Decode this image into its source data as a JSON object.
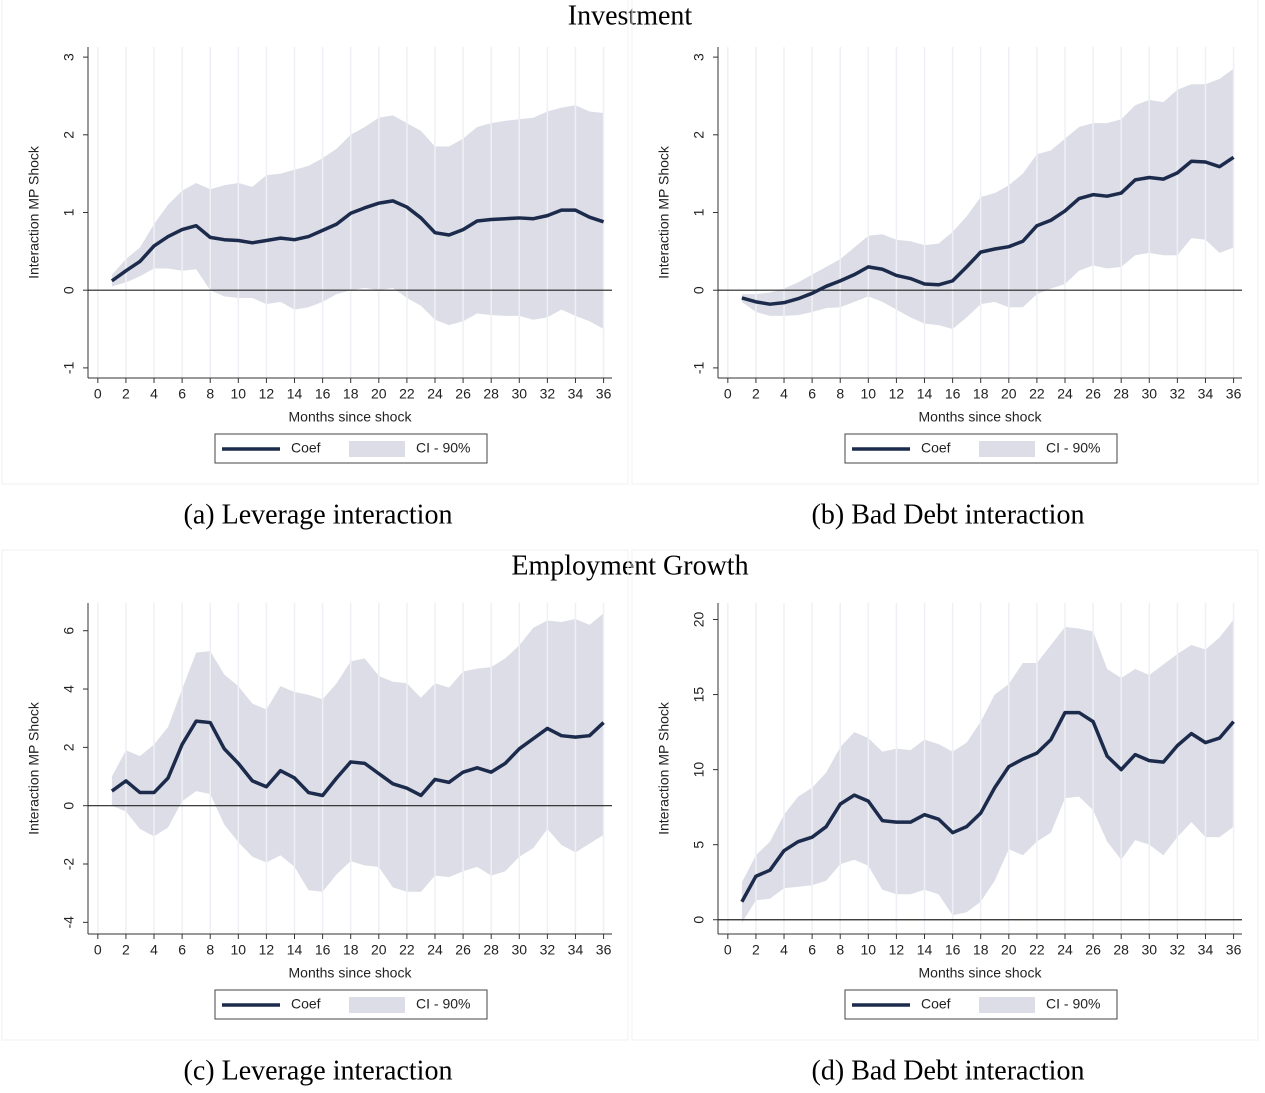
{
  "section_titles": [
    "Investment",
    "Employment Growth"
  ],
  "chart_data": [
    {
      "type": "line",
      "caption": "(a) Leverage interaction",
      "x_label": "Months since shock",
      "y_label": "Interaction MP Shock",
      "x": [
        1,
        2,
        3,
        4,
        5,
        6,
        7,
        8,
        9,
        10,
        11,
        12,
        13,
        14,
        15,
        16,
        17,
        18,
        19,
        20,
        21,
        22,
        23,
        24,
        25,
        26,
        27,
        28,
        29,
        30,
        31,
        32,
        33,
        34,
        35,
        36
      ],
      "series": [
        {
          "name": "Coef",
          "color": "#1c2b4b",
          "values": [
            0.12,
            0.25,
            0.37,
            0.57,
            0.69,
            0.78,
            0.83,
            0.68,
            0.65,
            0.64,
            0.61,
            0.64,
            0.67,
            0.65,
            0.69,
            0.77,
            0.85,
            0.99,
            1.06,
            1.12,
            1.15,
            1.07,
            0.93,
            0.74,
            0.71,
            0.78,
            0.89,
            0.91,
            0.92,
            0.93,
            0.92,
            0.96,
            1.03,
            1.03,
            0.94,
            0.88
          ]
        },
        {
          "name": "CI - 90%",
          "color": "#dcdde6",
          "upper": [
            0.2,
            0.4,
            0.55,
            0.85,
            1.1,
            1.28,
            1.38,
            1.3,
            1.35,
            1.38,
            1.33,
            1.48,
            1.5,
            1.55,
            1.6,
            1.7,
            1.82,
            2.0,
            2.1,
            2.22,
            2.25,
            2.15,
            2.05,
            1.85,
            1.85,
            1.95,
            2.1,
            2.15,
            2.18,
            2.2,
            2.22,
            2.3,
            2.35,
            2.38,
            2.3,
            2.28
          ],
          "lower": [
            0.05,
            0.1,
            0.18,
            0.28,
            0.28,
            0.25,
            0.27,
            0.0,
            -0.08,
            -0.1,
            -0.1,
            -0.18,
            -0.15,
            -0.25,
            -0.22,
            -0.15,
            -0.05,
            0.0,
            0.03,
            0.0,
            0.03,
            -0.1,
            -0.2,
            -0.38,
            -0.45,
            -0.4,
            -0.3,
            -0.32,
            -0.33,
            -0.33,
            -0.38,
            -0.35,
            -0.25,
            -0.33,
            -0.4,
            -0.5
          ]
        }
      ],
      "xlim": [
        -0.7,
        36.6
      ],
      "xticks": [
        0,
        2,
        4,
        6,
        8,
        10,
        12,
        14,
        16,
        18,
        20,
        22,
        24,
        26,
        28,
        30,
        32,
        34,
        36
      ],
      "ylim": [
        -1.13,
        3.13
      ],
      "yticks": [
        -1,
        0,
        1,
        2,
        3
      ],
      "reference_line": 0,
      "grid": "x"
    },
    {
      "type": "line",
      "caption": "(b) Bad Debt interaction",
      "x_label": "Months since shock",
      "y_label": "Interaction MP Shock",
      "x": [
        1,
        2,
        3,
        4,
        5,
        6,
        7,
        8,
        9,
        10,
        11,
        12,
        13,
        14,
        15,
        16,
        17,
        18,
        19,
        20,
        21,
        22,
        23,
        24,
        25,
        26,
        27,
        28,
        29,
        30,
        31,
        32,
        33,
        34,
        35,
        36
      ],
      "series": [
        {
          "name": "Coef",
          "color": "#1c2b4b",
          "values": [
            -0.1,
            -0.15,
            -0.18,
            -0.16,
            -0.11,
            -0.04,
            0.05,
            0.12,
            0.2,
            0.3,
            0.27,
            0.19,
            0.15,
            0.08,
            0.07,
            0.12,
            0.3,
            0.49,
            0.53,
            0.56,
            0.63,
            0.83,
            0.9,
            1.02,
            1.18,
            1.23,
            1.21,
            1.25,
            1.42,
            1.45,
            1.43,
            1.51,
            1.66,
            1.65,
            1.59,
            1.71
          ]
        },
        {
          "name": "CI - 90%",
          "color": "#dcdde6",
          "upper": [
            -0.05,
            -0.05,
            -0.03,
            0.02,
            0.1,
            0.2,
            0.3,
            0.4,
            0.55,
            0.7,
            0.72,
            0.65,
            0.63,
            0.58,
            0.6,
            0.75,
            0.95,
            1.2,
            1.25,
            1.35,
            1.5,
            1.75,
            1.8,
            1.95,
            2.1,
            2.15,
            2.15,
            2.2,
            2.38,
            2.45,
            2.42,
            2.58,
            2.65,
            2.65,
            2.72,
            2.85
          ],
          "lower": [
            -0.15,
            -0.28,
            -0.33,
            -0.33,
            -0.32,
            -0.28,
            -0.23,
            -0.22,
            -0.15,
            -0.08,
            -0.15,
            -0.25,
            -0.35,
            -0.43,
            -0.45,
            -0.5,
            -0.35,
            -0.18,
            -0.15,
            -0.22,
            -0.22,
            -0.05,
            0.02,
            0.08,
            0.25,
            0.32,
            0.28,
            0.3,
            0.45,
            0.48,
            0.45,
            0.45,
            0.67,
            0.65,
            0.48,
            0.55
          ]
        }
      ],
      "xlim": [
        -0.7,
        36.6
      ],
      "xticks": [
        0,
        2,
        4,
        6,
        8,
        10,
        12,
        14,
        16,
        18,
        20,
        22,
        24,
        26,
        28,
        30,
        32,
        34,
        36
      ],
      "ylim": [
        -1.13,
        3.13
      ],
      "yticks": [
        -1,
        0,
        1,
        2,
        3
      ],
      "reference_line": 0,
      "grid": "x"
    },
    {
      "type": "line",
      "caption": "(c) Leverage interaction",
      "x_label": "Months since shock",
      "y_label": "Interaction MP Shock",
      "x": [
        1,
        2,
        3,
        4,
        5,
        6,
        7,
        8,
        9,
        10,
        11,
        12,
        13,
        14,
        15,
        16,
        17,
        18,
        19,
        20,
        21,
        22,
        23,
        24,
        25,
        26,
        27,
        28,
        29,
        30,
        31,
        32,
        33,
        34,
        35,
        36
      ],
      "series": [
        {
          "name": "Coef",
          "color": "#1c2b4b",
          "values": [
            0.5,
            0.85,
            0.45,
            0.45,
            0.95,
            2.1,
            2.9,
            2.85,
            1.95,
            1.45,
            0.85,
            0.65,
            1.2,
            0.95,
            0.45,
            0.35,
            0.95,
            1.5,
            1.45,
            1.1,
            0.75,
            0.6,
            0.35,
            0.9,
            0.8,
            1.15,
            1.3,
            1.15,
            1.45,
            1.95,
            2.3,
            2.65,
            2.4,
            2.35,
            2.4,
            2.85
          ]
        },
        {
          "name": "CI - 90%",
          "color": "#dcdde6",
          "upper": [
            1.0,
            1.9,
            1.7,
            2.1,
            2.7,
            4.0,
            5.25,
            5.3,
            4.5,
            4.1,
            3.5,
            3.3,
            4.1,
            3.9,
            3.8,
            3.65,
            4.2,
            4.95,
            5.05,
            4.45,
            4.25,
            4.2,
            3.7,
            4.2,
            4.05,
            4.6,
            4.7,
            4.75,
            5.05,
            5.5,
            6.1,
            6.35,
            6.3,
            6.4,
            6.2,
            6.6
          ],
          "lower": [
            0.0,
            -0.2,
            -0.8,
            -1.05,
            -0.75,
            0.15,
            0.5,
            0.4,
            -0.65,
            -1.25,
            -1.75,
            -1.95,
            -1.7,
            -2.1,
            -2.9,
            -2.95,
            -2.35,
            -1.9,
            -2.05,
            -2.1,
            -2.8,
            -2.95,
            -2.95,
            -2.4,
            -2.45,
            -2.25,
            -2.1,
            -2.4,
            -2.25,
            -1.75,
            -1.45,
            -0.8,
            -1.35,
            -1.6,
            -1.3,
            -1.0
          ]
        }
      ],
      "xlim": [
        -0.7,
        36.6
      ],
      "xticks": [
        0,
        2,
        4,
        6,
        8,
        10,
        12,
        14,
        16,
        18,
        20,
        22,
        24,
        26,
        28,
        30,
        32,
        34,
        36
      ],
      "ylim": [
        -4.4,
        6.95
      ],
      "yticks": [
        -4,
        -2,
        0,
        2,
        4,
        6
      ],
      "reference_line": 0,
      "grid": "x"
    },
    {
      "type": "line",
      "caption": "(d) Bad Debt interaction",
      "x_label": "Months since shock",
      "y_label": "Interaction MP Shock",
      "x": [
        1,
        2,
        3,
        4,
        5,
        6,
        7,
        8,
        9,
        10,
        11,
        12,
        13,
        14,
        15,
        16,
        17,
        18,
        19,
        20,
        21,
        22,
        23,
        24,
        25,
        26,
        27,
        28,
        29,
        30,
        31,
        32,
        33,
        34,
        35,
        36
      ],
      "series": [
        {
          "name": "Coef",
          "color": "#1c2b4b",
          "values": [
            1.2,
            2.9,
            3.3,
            4.6,
            5.2,
            5.5,
            6.2,
            7.7,
            8.3,
            7.9,
            6.6,
            6.5,
            6.5,
            7.0,
            6.7,
            5.8,
            6.2,
            7.1,
            8.8,
            10.2,
            10.7,
            11.1,
            12.0,
            13.8,
            13.8,
            13.2,
            10.9,
            10.0,
            11.0,
            10.6,
            10.5,
            11.6,
            12.4,
            11.8,
            12.1,
            13.2
          ]
        },
        {
          "name": "CI - 90%",
          "color": "#dcdde6",
          "upper": [
            2.5,
            4.3,
            5.2,
            7.0,
            8.2,
            8.8,
            9.8,
            11.5,
            12.5,
            12.1,
            11.2,
            11.4,
            11.3,
            12.0,
            11.7,
            11.2,
            11.8,
            13.2,
            15.0,
            15.7,
            17.1,
            17.1,
            18.3,
            19.5,
            19.4,
            19.2,
            16.7,
            16.1,
            16.7,
            16.3,
            17.0,
            17.7,
            18.3,
            18.0,
            18.8,
            20.0
          ],
          "lower": [
            -0.2,
            1.3,
            1.4,
            2.1,
            2.2,
            2.3,
            2.6,
            3.7,
            4.0,
            3.6,
            2.0,
            1.7,
            1.7,
            2.0,
            1.7,
            0.3,
            0.5,
            1.2,
            2.6,
            4.7,
            4.3,
            5.2,
            5.8,
            8.1,
            8.2,
            7.3,
            5.2,
            4.0,
            5.3,
            5.0,
            4.3,
            5.5,
            6.5,
            5.5,
            5.5,
            6.2
          ]
        }
      ],
      "xlim": [
        -0.7,
        36.6
      ],
      "xticks": [
        0,
        2,
        4,
        6,
        8,
        10,
        12,
        14,
        16,
        18,
        20,
        22,
        24,
        26,
        28,
        30,
        32,
        34,
        36
      ],
      "ylim": [
        -0.95,
        21.1
      ],
      "yticks": [
        0,
        5,
        10,
        15,
        20
      ],
      "reference_line": 0,
      "grid": "x"
    }
  ]
}
